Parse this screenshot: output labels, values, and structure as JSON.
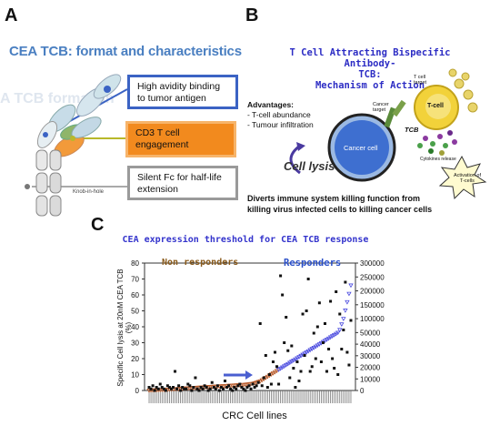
{
  "panel_a": {
    "letter": "A",
    "title": "CEA TCB: format and characteristics",
    "ghost_text": "A TCB format an",
    "box1": "High avidity binding to tumor antigen",
    "box2": "CD3 T cell engagement",
    "box3": "Silent Fc for half-life extension",
    "knob_label": "Knob-in-hole"
  },
  "panel_b": {
    "letter": "B",
    "title_line1": "T Cell Attracting Bispecific Antibody-",
    "title_line2": "TCB:",
    "title_line3": "Mechanism of Action",
    "advantages_heading": "Advantages:",
    "advantages": [
      "- T-cell abundance",
      "- Tumour infiltration"
    ],
    "tcell_target": "T cell target",
    "tcell": "T-cell",
    "cancer_target": "Cancer target",
    "tcb": "TCB",
    "cancer_cell": "Cancer cell",
    "cytokines": "Cytokines release",
    "activation": "Activation of T-cells",
    "cell_lysis": "Cell lysis",
    "divert_line1": "Diverts immune system killing function  from",
    "divert_line2": "killing virus infected cells to killing cancer cells"
  },
  "panel_c": {
    "letter": "C",
    "title": "CEA expression threshold for CEA TCB response",
    "non_responders": "Non responders",
    "responders": "Responders",
    "xlabel": "CRC Cell lines",
    "ylabel_line1": "Specific Cell lysis at 20nM CEA TCB (%)",
    "colors": {
      "lysis": "#111111",
      "cea": "#4a4adf",
      "arrow": "#4a5fd0",
      "tail": "#b85a2a"
    }
  },
  "chart_data": {
    "type": "scatter",
    "title": "CEA expression threshold for CEA TCB response",
    "xlabel": "CRC Cell lines",
    "ylabel": "Specific Cell lysis at 20nM CEA TCB (%)",
    "ylim": [
      0,
      80
    ],
    "y2lim": [
      0,
      300000
    ],
    "y_ticks": [
      0,
      10,
      20,
      30,
      40,
      50,
      60,
      70,
      80
    ],
    "y2_ticks": [
      0,
      10000,
      20000,
      30000,
      40000,
      50000,
      100000,
      150000,
      200000,
      250000,
      300000
    ],
    "n_cell_lines": 110,
    "series": [
      {
        "name": "Specific cell lysis",
        "axis": "left",
        "values": [
          2,
          1,
          3,
          0,
          2,
          1,
          4,
          2,
          1,
          0,
          3,
          2,
          1,
          2,
          12,
          1,
          3,
          0,
          2,
          1,
          1,
          4,
          3,
          0,
          2,
          8,
          1,
          0,
          2,
          1,
          3,
          2,
          0,
          1,
          5,
          2,
          1,
          3,
          0,
          2,
          1,
          6,
          2,
          3,
          1,
          0,
          2,
          1,
          3,
          4,
          2,
          1,
          0,
          2,
          3,
          1,
          4,
          2,
          3,
          5,
          42,
          3,
          8,
          22,
          2,
          10,
          4,
          18,
          24,
          15,
          4,
          72,
          60,
          30,
          46,
          25,
          8,
          28,
          14,
          2,
          18,
          6,
          12,
          48,
          22,
          50,
          70,
          12,
          15,
          36,
          20,
          40,
          55,
          18,
          30,
          42,
          12,
          26,
          56,
          20,
          14,
          62,
          10,
          48,
          26,
          38,
          68,
          24,
          16,
          44
        ]
      },
      {
        "name": "CEA expression",
        "axis": "right",
        "values": [
          100,
          200,
          300,
          300,
          400,
          500,
          500,
          600,
          700,
          800,
          900,
          1000,
          1100,
          1200,
          1300,
          1400,
          1500,
          1600,
          1700,
          1800,
          1900,
          2000,
          2100,
          2200,
          2300,
          2400,
          2500,
          2600,
          2700,
          2800,
          2900,
          3000,
          3100,
          3200,
          3300,
          3400,
          3500,
          3600,
          3700,
          3800,
          3900,
          4000,
          4100,
          4200,
          4300,
          4400,
          4500,
          4600,
          4700,
          4800,
          4900,
          5000,
          5200,
          5400,
          5600,
          5800,
          6000,
          6500,
          7000,
          7500,
          8000,
          9000,
          10000,
          11000,
          12000,
          13000,
          14000,
          15000,
          16000,
          17000,
          18000,
          19000,
          20000,
          21000,
          22000,
          23000,
          24000,
          25000,
          26000,
          27000,
          28000,
          29000,
          30000,
          31000,
          32000,
          33000,
          34000,
          35000,
          36000,
          37000,
          38000,
          39000,
          40000,
          41000,
          42000,
          43000,
          44000,
          45000,
          46000,
          47000,
          48000,
          49000,
          50000,
          60000,
          80000,
          100000,
          130000,
          160000,
          190000,
          220000
        ]
      }
    ],
    "threshold_arrow_at_cell_line": 60
  }
}
